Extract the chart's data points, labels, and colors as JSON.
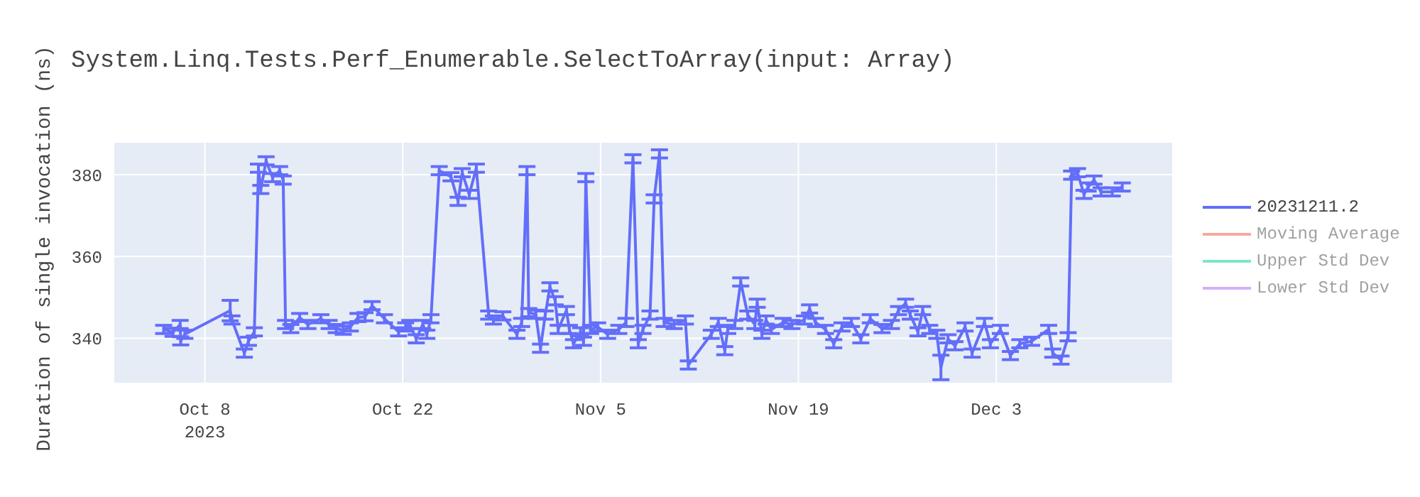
{
  "chart_data": {
    "type": "line",
    "title": "System.Linq.Tests.Perf_Enumerable.SelectToArray(input: Array)",
    "ylabel": "Duration of single invocation (ns)",
    "x": [
      "2023-10-05T02:00",
      "2023-10-05T18:00",
      "2023-10-06T06:00",
      "2023-10-06T07:00",
      "2023-10-06T14:00",
      "2023-10-09T19:00",
      "2023-10-09T22:00",
      "2023-10-10T19:00",
      "2023-10-11T02:00",
      "2023-10-11T12:00",
      "2023-10-11T19:00",
      "2023-10-11T23:00",
      "2023-10-12T08:00",
      "2023-10-12T19:00",
      "2023-10-13T07:00",
      "2023-10-13T13:00",
      "2023-10-13T17:00",
      "2023-10-14T02:00",
      "2023-10-14T17:00",
      "2023-10-15T07:00",
      "2023-10-16T05:00",
      "2023-10-16T19:00",
      "2023-10-17T07:00",
      "2023-10-17T19:00",
      "2023-10-18T07:00",
      "2023-10-18T20:00",
      "2023-10-19T08:00",
      "2023-10-19T20:00",
      "2023-10-20T17:00",
      "2023-10-21T17:00",
      "2023-10-22T05:00",
      "2023-10-22T12:00",
      "2023-10-22T23:00",
      "2023-10-23T10:00",
      "2023-10-23T17:00",
      "2023-10-24T00:00",
      "2023-10-24T14:00",
      "2023-10-25T10:00",
      "2023-10-25T22:00",
      "2023-10-26T05:00",
      "2023-10-26T17:00",
      "2023-10-27T05:00",
      "2023-10-28T02:00",
      "2023-10-28T10:00",
      "2023-10-29T02:00",
      "2023-10-30T02:00",
      "2023-10-30T10:00",
      "2023-10-30T19:00",
      "2023-10-30T22:00",
      "2023-10-31T10:00",
      "2023-10-31T18:00",
      "2023-11-01T02:00",
      "2023-11-01T10:00",
      "2023-11-01T19:00",
      "2023-11-02T00:00",
      "2023-11-02T14:00",
      "2023-11-02T19:00",
      "2023-11-03T02:00",
      "2023-11-03T14:00",
      "2023-11-03T19:00",
      "2023-11-03T23:00",
      "2023-11-04T07:00",
      "2023-11-04T19:00",
      "2023-11-05T12:00",
      "2023-11-06T07:00",
      "2023-11-06T19:00",
      "2023-11-07T07:00",
      "2023-11-07T16:00",
      "2023-11-08T00:00",
      "2023-11-08T12:00",
      "2023-11-08T19:00",
      "2023-11-09T04:00",
      "2023-11-09T12:00",
      "2023-11-10T05:00",
      "2023-11-11T00:00",
      "2023-11-11T05:00",
      "2023-11-12T20:00",
      "2023-11-13T08:00",
      "2023-11-13T19:00",
      "2023-11-14T00:00",
      "2023-11-14T12:00",
      "2023-11-14T22:00",
      "2023-11-15T10:00",
      "2023-11-15T22:00",
      "2023-11-16T02:00",
      "2023-11-16T10:00",
      "2023-11-16T17:00",
      "2023-11-17T02:00",
      "2023-11-17T22:00",
      "2023-11-18T13:00",
      "2023-11-19T10:00",
      "2023-11-19T19:00",
      "2023-11-20T05:00",
      "2023-11-20T22:00",
      "2023-11-21T12:00",
      "2023-11-22T02:00",
      "2023-11-22T18:00",
      "2023-11-23T10:00",
      "2023-11-24T02:00",
      "2023-11-24T22:00",
      "2023-11-25T14:00",
      "2023-11-26T02:00",
      "2023-11-26T14:00",
      "2023-11-26T22:00",
      "2023-11-27T11:00",
      "2023-11-27T19:00",
      "2023-11-28T07:00",
      "2023-11-28T19:00",
      "2023-11-29T02:00",
      "2023-11-29T14:00",
      "2023-11-30T02:00",
      "2023-11-30T19:00",
      "2023-12-01T07:00",
      "2023-12-02T04:00",
      "2023-12-02T14:00",
      "2023-12-03T07:00",
      "2023-12-04T00:00",
      "2023-12-04T16:00",
      "2023-12-05T12:00",
      "2023-12-06T17:00",
      "2023-12-07T00:00",
      "2023-12-07T14:00",
      "2023-12-08T02:00",
      "2023-12-08T08:00",
      "2023-12-08T18:00",
      "2023-12-09T05:00",
      "2023-12-09T12:00",
      "2023-12-09T22:00",
      "2023-12-10T10:00",
      "2023-12-11T05:00",
      "2023-12-11T22:00"
    ],
    "series": [
      {
        "name": "20231211.2",
        "color": "#636efa",
        "values": [
          342.2,
          341.5,
          343.4,
          339.4,
          341,
          346.8,
          344.5,
          336.4,
          339.3,
          341.6,
          381.6,
          376.4,
          383.4,
          379.3,
          381,
          378.7,
          343.4,
          342.4,
          345.1,
          343.4,
          344.8,
          343.4,
          342.4,
          342,
          342.8,
          345.1,
          345.3,
          348,
          344.8,
          341.6,
          342.8,
          343.4,
          339.9,
          343.4,
          341,
          344.8,
          381,
          379.5,
          373.5,
          380.5,
          375.2,
          381.6,
          345.7,
          344.5,
          345.5,
          341,
          343.9,
          381,
          346.3,
          345.9,
          337.6,
          345.7,
          352.6,
          349.2,
          342.2,
          346.8,
          342.2,
          338.7,
          341.6,
          339.3,
          379.3,
          342.2,
          342.8,
          341,
          342.2,
          343.9,
          383.9,
          338.7,
          342.2,
          345.7,
          374.1,
          385.1,
          343.9,
          343.4,
          344.5,
          333.5,
          341,
          343.9,
          337,
          342.2,
          343.4,
          353.8,
          345.7,
          343.4,
          348.6,
          341,
          344.5,
          342.2,
          343.9,
          343.4,
          344.5,
          347.2,
          343.9,
          342.2,
          338.7,
          342.8,
          343.9,
          339.9,
          344.8,
          342.4,
          343.4,
          346.8,
          348.6,
          345.7,
          341.6,
          346.8,
          342.2,
          341,
          332.9,
          339.9,
          338.2,
          342.8,
          336.4,
          343.9,
          338.7,
          342.2,
          335.8,
          338.7,
          339.3,
          342.2,
          336.4,
          334.7,
          340.4,
          379.9,
          380.5,
          375.2,
          377,
          378.7,
          375.8,
          375.8,
          377
        ],
        "errors": [
          1,
          1,
          1,
          1,
          1,
          2.5,
          1,
          1,
          1,
          1,
          1,
          1,
          1,
          1,
          1,
          1,
          1,
          1,
          1,
          1,
          1,
          1,
          1,
          1,
          1,
          1,
          1,
          1,
          1,
          1,
          1,
          1,
          1,
          1,
          1,
          1,
          1,
          1,
          1,
          1,
          1,
          1,
          1,
          1,
          1,
          1,
          1,
          1,
          1,
          1,
          1,
          1,
          1,
          1,
          1,
          1,
          1,
          1,
          1,
          1,
          1,
          1,
          1,
          1,
          1,
          1,
          1,
          1,
          1,
          1,
          1,
          1,
          1,
          1,
          1,
          1,
          1,
          1,
          1,
          1,
          1,
          1,
          1,
          1,
          1,
          1,
          1,
          1,
          1,
          1,
          1,
          1,
          1,
          1,
          1,
          1,
          1,
          1,
          1,
          1,
          1,
          1,
          1,
          1,
          1,
          1,
          1,
          1,
          3,
          1,
          1,
          1,
          1,
          1,
          1,
          1,
          1,
          1,
          1,
          1,
          1,
          1,
          1,
          1,
          1,
          1,
          1,
          1,
          1,
          1,
          1
        ]
      },
      {
        "name": "Moving Average",
        "color": "#ef553b",
        "values": [
          null,
          null,
          null,
          null,
          null,
          null,
          null,
          null,
          null,
          null,
          null,
          null,
          null,
          null,
          null,
          null,
          null,
          null,
          null,
          null,
          null,
          null,
          null,
          null,
          null,
          null,
          null,
          null,
          null,
          null,
          null,
          null,
          null,
          null,
          null,
          null,
          null,
          null,
          null,
          null,
          null,
          null,
          null,
          null,
          null,
          null,
          null,
          null,
          null,
          null,
          null,
          null,
          null,
          null,
          null,
          null,
          null,
          null,
          null,
          null,
          null,
          null,
          null,
          null,
          null,
          null,
          null,
          null,
          null,
          null,
          null,
          null,
          null,
          null,
          null,
          null,
          null,
          null,
          null,
          null,
          null,
          null,
          null,
          null,
          null,
          null,
          null,
          null,
          null,
          null,
          null,
          null,
          null,
          null,
          null,
          null,
          null,
          null,
          null,
          null,
          null,
          null,
          null,
          null,
          null,
          null,
          null,
          null,
          null,
          null,
          null,
          null,
          null,
          null,
          null,
          null,
          null,
          null,
          null,
          null,
          null,
          null,
          null,
          null,
          null,
          null,
          null,
          null,
          null,
          null,
          null
        ]
      },
      {
        "name": "Upper Std Dev",
        "color": "#00cc96",
        "values": [
          null,
          null,
          null,
          null,
          null,
          null,
          null,
          null,
          null,
          null,
          null,
          null,
          null,
          null,
          null,
          null,
          null,
          null,
          null,
          null,
          null,
          null,
          null,
          null,
          null,
          null,
          null,
          null,
          null,
          null,
          null,
          null,
          null,
          null,
          null,
          null,
          null,
          null,
          null,
          null,
          null,
          null,
          null,
          null,
          null,
          null,
          null,
          null,
          null,
          null,
          null,
          null,
          null,
          null,
          null,
          null,
          null,
          null,
          null,
          null,
          null,
          null,
          null,
          null,
          null,
          null,
          null,
          null,
          null,
          null,
          null,
          null,
          null,
          null,
          null,
          null,
          null,
          null,
          null,
          null,
          null,
          null,
          null,
          null,
          null,
          null,
          null,
          null,
          null,
          null,
          null,
          null,
          null,
          null,
          null,
          null,
          null,
          null,
          null,
          null,
          null,
          null,
          null,
          null,
          null,
          null,
          null,
          null,
          null,
          null,
          null,
          null,
          null,
          null,
          null,
          null,
          null,
          null,
          null,
          null,
          null,
          null,
          null,
          null,
          null,
          null,
          null,
          null,
          null,
          null,
          null
        ]
      },
      {
        "name": "Lower Std Dev",
        "color": "#ab63fa",
        "values": [
          null,
          null,
          null,
          null,
          null,
          null,
          null,
          null,
          null,
          null,
          null,
          null,
          null,
          null,
          null,
          null,
          null,
          null,
          null,
          null,
          null,
          null,
          null,
          null,
          null,
          null,
          null,
          null,
          null,
          null,
          null,
          null,
          null,
          null,
          null,
          null,
          null,
          null,
          null,
          null,
          null,
          null,
          null,
          null,
          null,
          null,
          null,
          null,
          null,
          null,
          null,
          null,
          null,
          null,
          null,
          null,
          null,
          null,
          null,
          null,
          null,
          null,
          null,
          null,
          null,
          null,
          null,
          null,
          null,
          null,
          null,
          null,
          null,
          null,
          null,
          null,
          null,
          null,
          null,
          null,
          null,
          null,
          null,
          null,
          null,
          null,
          null,
          null,
          null,
          null,
          null,
          null,
          null,
          null,
          null,
          null,
          null,
          null,
          null,
          null,
          null,
          null,
          null,
          null,
          null,
          null,
          null,
          null,
          null,
          null,
          null,
          null,
          null,
          null,
          null,
          null,
          null,
          null,
          null,
          null,
          null,
          null,
          null,
          null,
          null,
          null,
          null,
          null,
          null,
          null,
          null
        ]
      }
    ],
    "xlim": [
      "2023-10-01T13:00",
      "2023-12-15T12:00"
    ],
    "xticks": [
      {
        "value": "2023-10-08",
        "label": "Oct 8\n2023"
      },
      {
        "value": "2023-10-22",
        "label": "Oct 22"
      },
      {
        "value": "2023-11-05",
        "label": "Nov 5"
      },
      {
        "value": "2023-11-19",
        "label": "Nov 19"
      },
      {
        "value": "2023-12-03",
        "label": "Dec 3"
      }
    ],
    "ylim": [
      329,
      388
    ],
    "yticks": [
      340,
      360,
      380
    ],
    "grid": true,
    "legend": "top right",
    "marker": "none",
    "line_style": "solid"
  }
}
